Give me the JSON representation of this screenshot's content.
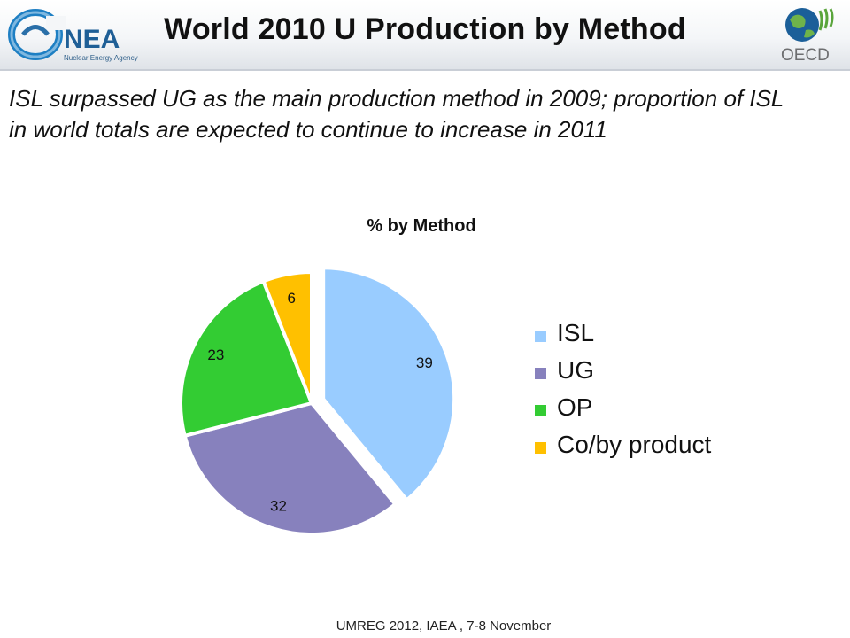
{
  "header": {
    "title": "World 2010 U Production by Method",
    "nea_logo": {
      "text": "NEA",
      "tagline": "Nuclear Energy Agency",
      "icon": "nea-logo-icon"
    },
    "oecd_logo": {
      "text": "OECD",
      "icon": "oecd-globe-icon"
    }
  },
  "subtitle": "ISL surpassed UG as the main production method in 2009; proportion of ISL in world  totals are expected to continue to increase in 2011",
  "chart_data": {
    "type": "pie",
    "title": "% by Method",
    "categories": [
      "ISL",
      "UG",
      "OP",
      "Co/by product"
    ],
    "values": [
      39,
      32,
      23,
      6
    ],
    "colors": [
      "#99ccff",
      "#8781bd",
      "#33cc33",
      "#ffc000"
    ],
    "exploded": [
      "ISL"
    ],
    "legend_position": "right",
    "data_labels": true
  },
  "footer": "UMREG 2012, IAEA , 7-8 November"
}
